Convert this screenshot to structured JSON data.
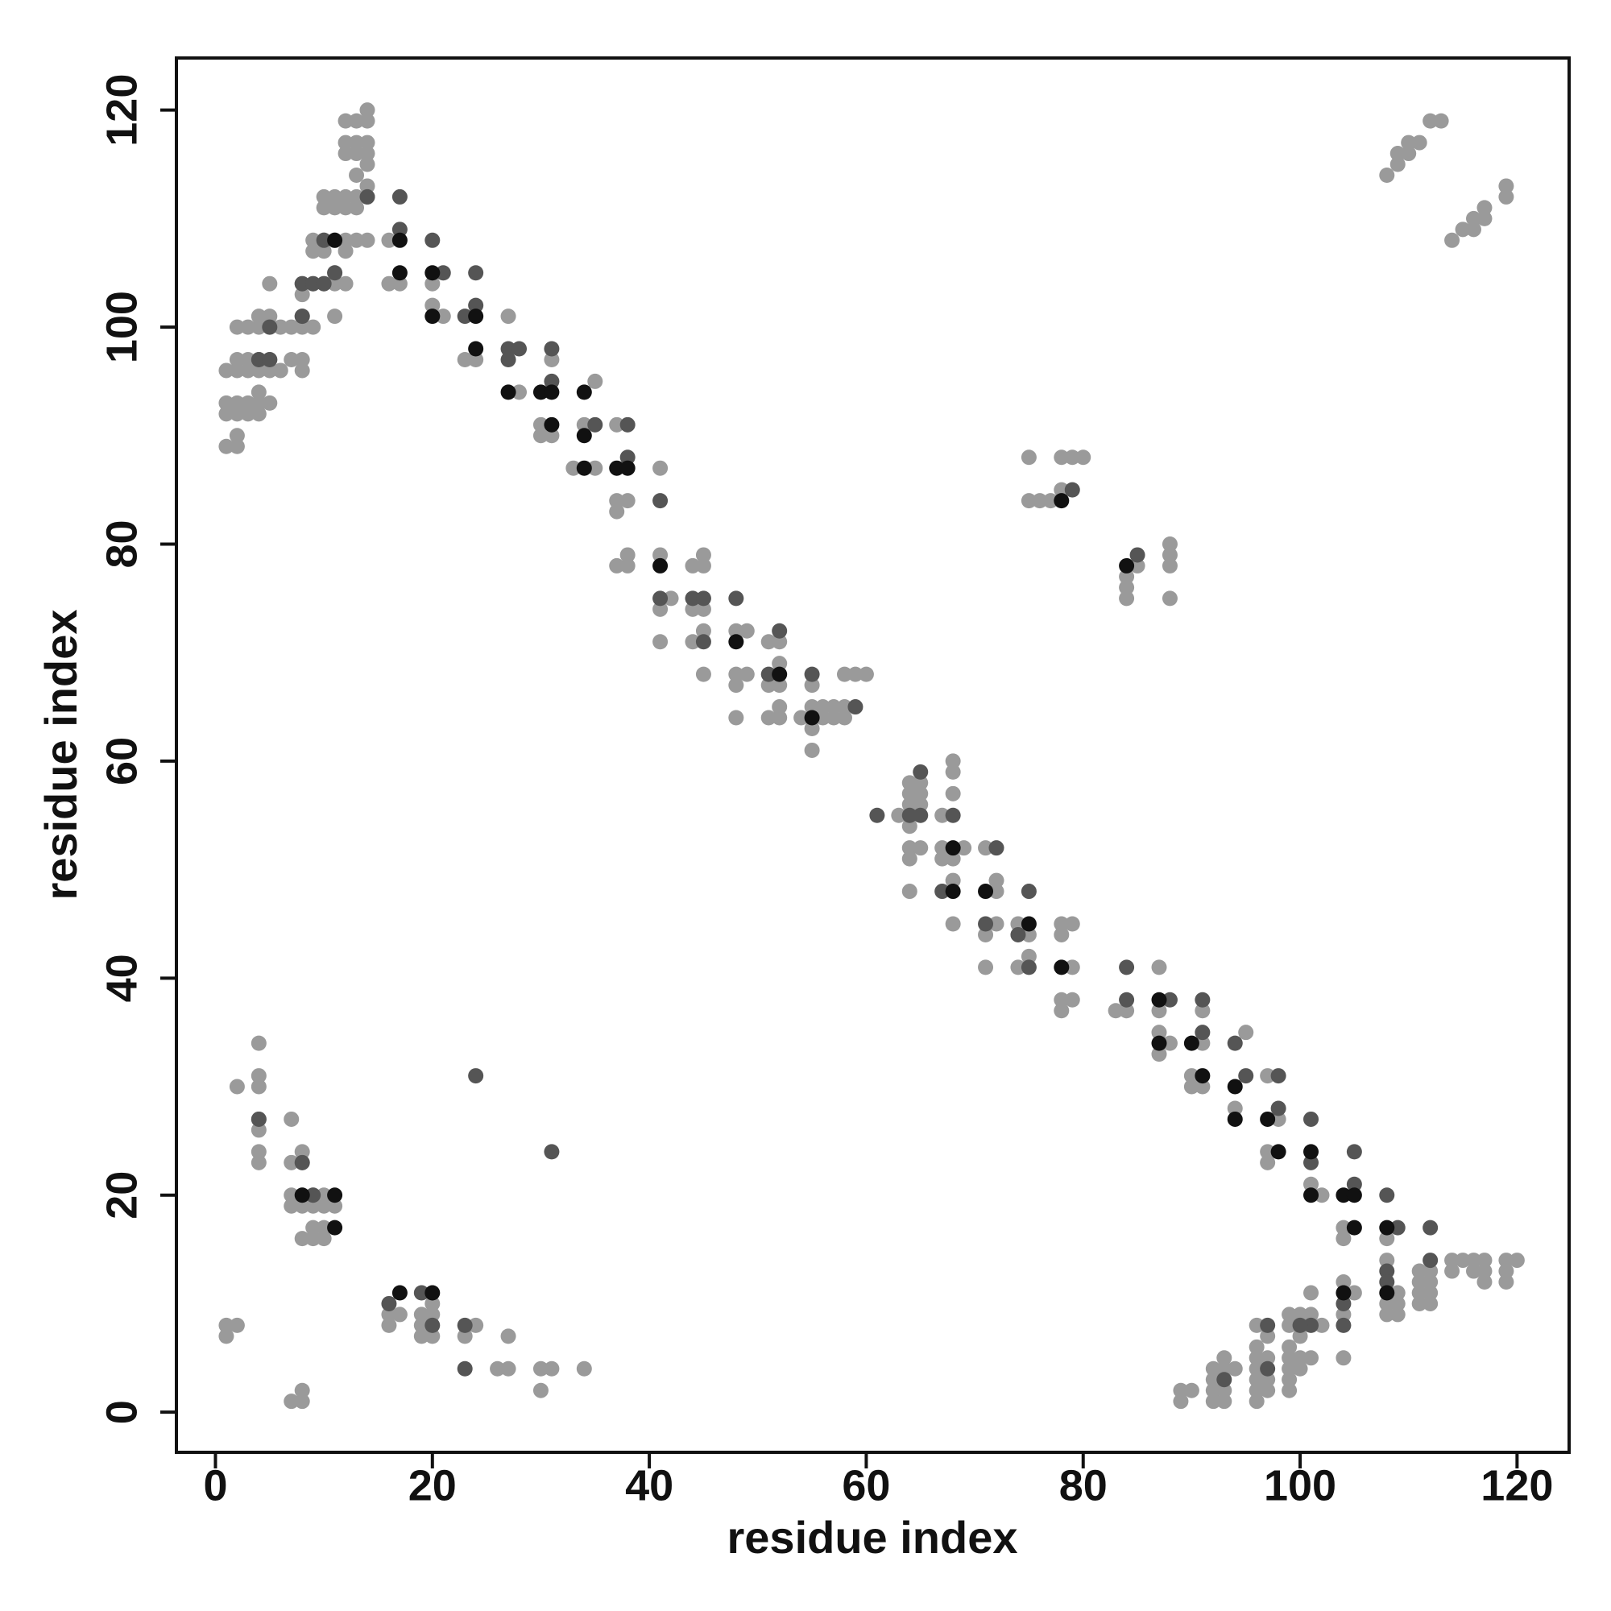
{
  "chart_data": {
    "type": "scatter",
    "xlabel": "residue index",
    "ylabel": "residue index",
    "xlim": [
      -3.6,
      124.8
    ],
    "ylim": [
      -3.7,
      124.8
    ],
    "xticks": [
      0,
      20,
      40,
      60,
      80,
      100,
      120
    ],
    "yticks": [
      0,
      20,
      40,
      60,
      80,
      100,
      120
    ],
    "series": [
      {
        "color": "#9a9a9a",
        "x": [
          1,
          1,
          1,
          1,
          1,
          1,
          2,
          2,
          2,
          2,
          2,
          2,
          2,
          2,
          2,
          3,
          3,
          3,
          3,
          3,
          4,
          4,
          4,
          4,
          4,
          4,
          4,
          4,
          4,
          4,
          4,
          4,
          4,
          4,
          5,
          5,
          5,
          5,
          5,
          5,
          6,
          6,
          7,
          7,
          7,
          7,
          7,
          7,
          7,
          8,
          8,
          8,
          8,
          8,
          8,
          8,
          8,
          8,
          8,
          8,
          8,
          8,
          9,
          9,
          9,
          9,
          9,
          9,
          9,
          9,
          10,
          10,
          10,
          10,
          10,
          10,
          10,
          10,
          10,
          11,
          11,
          11,
          11,
          11,
          11,
          11,
          12,
          12,
          12,
          12,
          12,
          12,
          12,
          12,
          13,
          13,
          13,
          13,
          13,
          13,
          13,
          14,
          14,
          14,
          14,
          14,
          14,
          14,
          14,
          16,
          16,
          16,
          16,
          17,
          17,
          19,
          19,
          19,
          20,
          20,
          20,
          20,
          20,
          21,
          23,
          23,
          24,
          24,
          26,
          27,
          27,
          27,
          28,
          30,
          30,
          30,
          30,
          31,
          31,
          31,
          33,
          34,
          34,
          35,
          35,
          37,
          37,
          37,
          37,
          38,
          38,
          38,
          41,
          41,
          41,
          41,
          42,
          44,
          44,
          44,
          45,
          45,
          45,
          45,
          45,
          48,
          48,
          48,
          48,
          49,
          49,
          51,
          51,
          51,
          52,
          52,
          52,
          52,
          52,
          54,
          55,
          55,
          55,
          55,
          56,
          56,
          57,
          57,
          58,
          58,
          58,
          59,
          60,
          63,
          64,
          64,
          64,
          64,
          64,
          64,
          64,
          65,
          65,
          65,
          65,
          67,
          67,
          67,
          68,
          68,
          68,
          68,
          68,
          68,
          69,
          71,
          71,
          71,
          72,
          72,
          72,
          74,
          74,
          75,
          75,
          75,
          75,
          76,
          77,
          78,
          78,
          78,
          78,
          78,
          78,
          79,
          79,
          79,
          79,
          80,
          83,
          84,
          84,
          84,
          84,
          85,
          87,
          87,
          87,
          87,
          88,
          88,
          88,
          88,
          88,
          89,
          89,
          90,
          90,
          90,
          91,
          91,
          91,
          92,
          92,
          92,
          92,
          93,
          93,
          93,
          93,
          94,
          94,
          95,
          96,
          96,
          96,
          96,
          96,
          96,
          96,
          97,
          97,
          97,
          97,
          97,
          97,
          97,
          98,
          99,
          99,
          99,
          99,
          99,
          99,
          99,
          100,
          100,
          100,
          100,
          101,
          101,
          101,
          101,
          102,
          102,
          104,
          104,
          104,
          104,
          104,
          105,
          108,
          108,
          108,
          108,
          109,
          109,
          109,
          111,
          111,
          111,
          111,
          112,
          112,
          112,
          112,
          114,
          114,
          115,
          116,
          116,
          117,
          117,
          117,
          119,
          119,
          119,
          120,
          108,
          109,
          109,
          110,
          110,
          111,
          112,
          113,
          114,
          115,
          116,
          116,
          117,
          117,
          119,
          119
        ],
        "values": [
          89,
          92,
          93,
          96,
          7,
          8,
          89,
          90,
          92,
          93,
          96,
          97,
          100,
          8,
          30,
          92,
          93,
          96,
          97,
          100,
          92,
          93,
          94,
          96,
          97,
          100,
          101,
          23,
          24,
          26,
          27,
          30,
          31,
          34,
          93,
          96,
          97,
          100,
          101,
          104,
          96,
          100,
          97,
          100,
          1,
          19,
          20,
          23,
          27,
          96,
          97,
          100,
          101,
          103,
          104,
          1,
          2,
          16,
          19,
          20,
          23,
          24,
          100,
          104,
          107,
          108,
          16,
          17,
          19,
          20,
          104,
          107,
          108,
          111,
          112,
          16,
          17,
          19,
          20,
          101,
          104,
          105,
          108,
          111,
          112,
          19,
          104,
          107,
          108,
          111,
          112,
          116,
          117,
          119,
          108,
          111,
          112,
          114,
          116,
          117,
          119,
          108,
          112,
          113,
          115,
          116,
          117,
          119,
          120,
          104,
          108,
          8,
          9,
          104,
          9,
          7,
          8,
          9,
          102,
          104,
          7,
          9,
          10,
          101,
          97,
          7,
          97,
          8,
          4,
          101,
          4,
          7,
          94,
          90,
          91,
          2,
          4,
          90,
          97,
          4,
          87,
          91,
          4,
          87,
          95,
          78,
          83,
          84,
          91,
          78,
          79,
          84,
          71,
          74,
          79,
          87,
          75,
          71,
          74,
          78,
          68,
          72,
          74,
          78,
          79,
          64,
          67,
          68,
          72,
          68,
          72,
          64,
          67,
          71,
          64,
          65,
          67,
          69,
          71,
          64,
          61,
          63,
          65,
          67,
          64,
          65,
          64,
          65,
          64,
          65,
          68,
          68,
          68,
          55,
          48,
          51,
          52,
          54,
          56,
          57,
          58,
          52,
          56,
          57,
          58,
          51,
          52,
          55,
          45,
          49,
          51,
          57,
          59,
          60,
          52,
          41,
          44,
          52,
          45,
          48,
          49,
          41,
          45,
          42,
          44,
          84,
          88,
          84,
          84,
          37,
          38,
          44,
          45,
          85,
          88,
          38,
          41,
          45,
          88,
          88,
          37,
          37,
          75,
          76,
          77,
          78,
          33,
          35,
          37,
          41,
          34,
          75,
          78,
          79,
          80,
          1,
          2,
          2,
          30,
          31,
          30,
          34,
          37,
          1,
          2,
          3,
          4,
          1,
          2,
          4,
          5,
          28,
          4,
          35,
          1,
          2,
          3,
          4,
          5,
          6,
          8,
          23,
          24,
          31,
          2,
          3,
          5,
          7,
          27,
          2,
          3,
          4,
          5,
          6,
          8,
          9,
          4,
          5,
          7,
          9,
          21,
          5,
          9,
          11,
          20,
          8,
          16,
          17,
          5,
          9,
          12,
          11,
          14,
          9,
          10,
          16,
          9,
          10,
          11,
          10,
          11,
          12,
          13,
          10,
          11,
          12,
          13,
          13,
          14,
          14,
          13,
          14,
          12,
          13,
          14,
          12,
          13,
          14,
          14,
          114,
          115,
          116,
          116,
          117,
          117,
          119,
          119,
          108,
          109,
          109,
          110,
          110,
          111,
          112,
          113
        ]
      },
      {
        "color": "#555555",
        "x": [
          4,
          5,
          5,
          8,
          8,
          9,
          10,
          10,
          11,
          14,
          17,
          17,
          20,
          21,
          23,
          24,
          24,
          27,
          27,
          28,
          31,
          31,
          35,
          38,
          38,
          41,
          41,
          44,
          45,
          45,
          48,
          51,
          52,
          55,
          59,
          61,
          64,
          65,
          65,
          67,
          68,
          72,
          71,
          74,
          75,
          75,
          79,
          84,
          84,
          88,
          91,
          91,
          94,
          95,
          98,
          98,
          101,
          101,
          105,
          105,
          108,
          109,
          112,
          112,
          104,
          104,
          108,
          108,
          101,
          100,
          97,
          97,
          93,
          8,
          9,
          4,
          20,
          19,
          16,
          23,
          23,
          24,
          31,
          85
        ],
        "values": [
          97,
          100,
          97,
          104,
          101,
          104,
          104,
          108,
          105,
          112,
          109,
          112,
          108,
          105,
          101,
          105,
          102,
          98,
          97,
          98,
          98,
          95,
          91,
          91,
          88,
          84,
          75,
          75,
          75,
          71,
          75,
          68,
          72,
          68,
          65,
          55,
          55,
          59,
          55,
          48,
          55,
          52,
          45,
          44,
          48,
          41,
          85,
          41,
          38,
          38,
          38,
          35,
          34,
          31,
          31,
          28,
          27,
          23,
          24,
          21,
          20,
          17,
          17,
          14,
          10,
          8,
          13,
          12,
          8,
          8,
          8,
          4,
          3,
          23,
          20,
          27,
          8,
          11,
          10,
          8,
          4,
          31,
          24,
          79
        ]
      },
      {
        "color": "#111111",
        "x": [
          11,
          17,
          17,
          20,
          20,
          24,
          24,
          27,
          30,
          31,
          31,
          34,
          34,
          34,
          37,
          38,
          41,
          48,
          52,
          55,
          68,
          71,
          68,
          75,
          78,
          78,
          84,
          87,
          87,
          90,
          91,
          94,
          94,
          97,
          98,
          101,
          101,
          104,
          105,
          105,
          108,
          108,
          11,
          11,
          17,
          20,
          8,
          104
        ],
        "values": [
          108,
          108,
          105,
          105,
          101,
          101,
          98,
          94,
          94,
          94,
          91,
          94,
          90,
          87,
          87,
          87,
          78,
          71,
          68,
          64,
          52,
          48,
          48,
          45,
          41,
          84,
          78,
          38,
          34,
          34,
          31,
          30,
          27,
          27,
          24,
          24,
          20,
          20,
          20,
          17,
          17,
          11,
          20,
          17,
          11,
          11,
          20,
          11
        ]
      }
    ]
  }
}
